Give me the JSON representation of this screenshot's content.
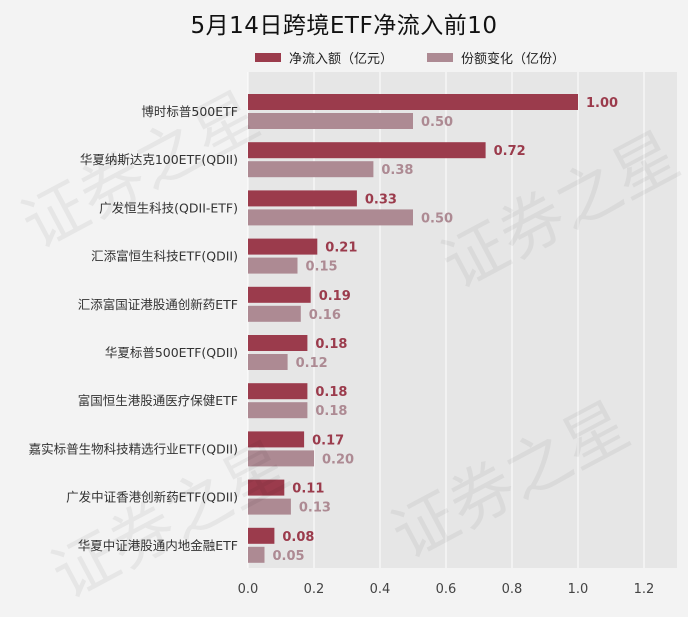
{
  "title": "5月14日跨境ETF净流入前10",
  "legend": [
    {
      "label": "净流入额（亿元）",
      "color": "#9b3b4c"
    },
    {
      "label": "份额变化（亿份）",
      "color": "#ad8a93"
    }
  ],
  "watermark": "证券之星",
  "chart_data": {
    "type": "bar",
    "orientation": "horizontal",
    "title": "5月14日跨境ETF净流入前10",
    "categories": [
      "博时标普500ETF",
      "华夏纳斯达克100ETF(QDII)",
      "广发恒生科技(QDII-ETF)",
      "汇添富恒生科技ETF(QDII)",
      "汇添富国证港股通创新药ETF",
      "华夏标普500ETF(QDII)",
      "富国恒生港股通医疗保健ETF",
      "嘉实标普生物科技精选行业ETF(QDII)",
      "广发中证香港创新药ETF(QDII)",
      "华夏中证港股通内地金融ETF"
    ],
    "series": [
      {
        "name": "净流入额（亿元）",
        "color": "#9b3b4c",
        "values": [
          1.0,
          0.72,
          0.33,
          0.21,
          0.19,
          0.18,
          0.18,
          0.17,
          0.11,
          0.08
        ]
      },
      {
        "name": "份额变化（亿份）",
        "color": "#ad8a93",
        "values": [
          0.5,
          0.38,
          0.5,
          0.15,
          0.16,
          0.12,
          0.18,
          0.2,
          0.13,
          0.05
        ]
      }
    ],
    "xlim": [
      0,
      1.3
    ],
    "xticks": [
      "0.0",
      "0.2",
      "0.4",
      "0.6",
      "0.8",
      "1.0",
      "1.2"
    ],
    "xtick_values": [
      0,
      0.2,
      0.4,
      0.6,
      0.8,
      1.0,
      1.2
    ],
    "grid": true,
    "legend_position": "top"
  }
}
